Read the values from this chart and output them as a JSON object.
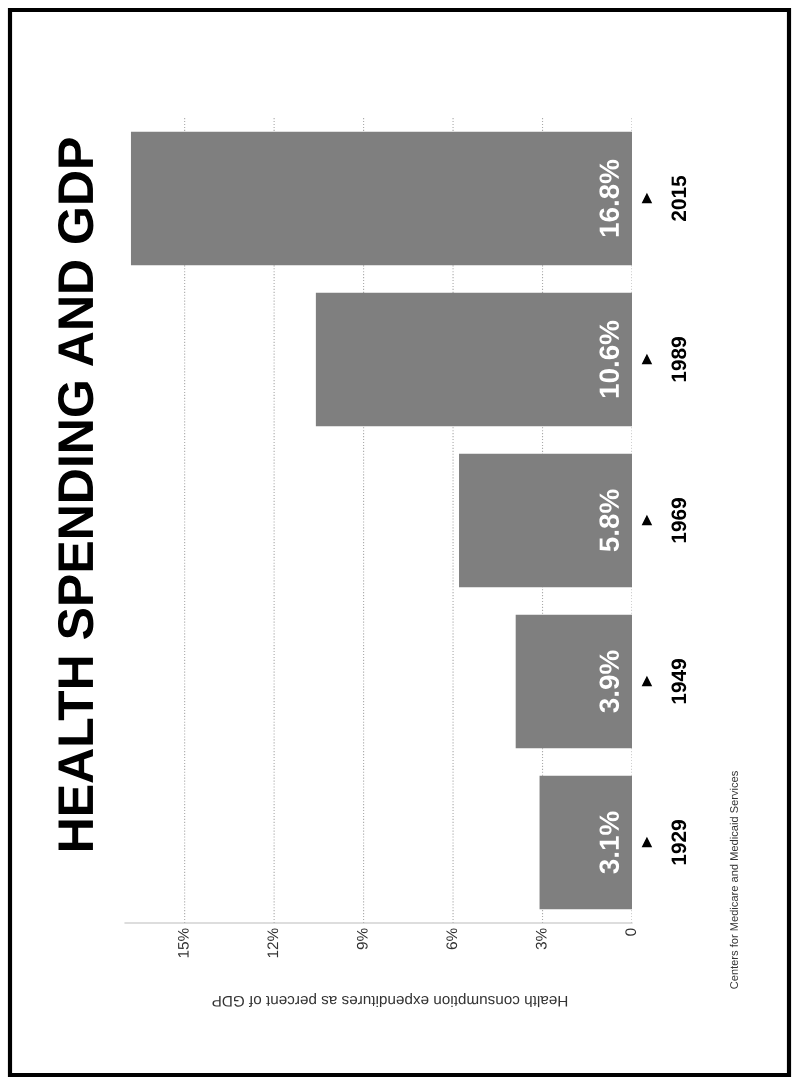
{
  "chart_data": {
    "type": "bar",
    "orientation": "horizontal",
    "title": "HEALTH SPENDING AND GDP",
    "xlabel": "Health consumption expenditures as percent of GDP",
    "categories": [
      "2015",
      "1989",
      "1969",
      "1949",
      "1929"
    ],
    "values": [
      16.8,
      10.6,
      5.8,
      3.9,
      3.1
    ],
    "value_labels": [
      "16.8%",
      "10.6%",
      "5.8%",
      "3.9%",
      "3.1%"
    ],
    "color": "#7f7f7f",
    "xlim": [
      17,
      0
    ],
    "xticks": [
      0,
      {
        "value": 3,
        "label": "3%"
      },
      {
        "value": 6,
        "label": "6%"
      },
      {
        "value": 9,
        "label": "9%"
      },
      {
        "value": 12,
        "label": "12%"
      },
      {
        "value": 15,
        "label": "15%"
      }
    ],
    "grid": "x",
    "annotations": [
      "Centers for Medicare and Medicaid Services"
    ]
  }
}
